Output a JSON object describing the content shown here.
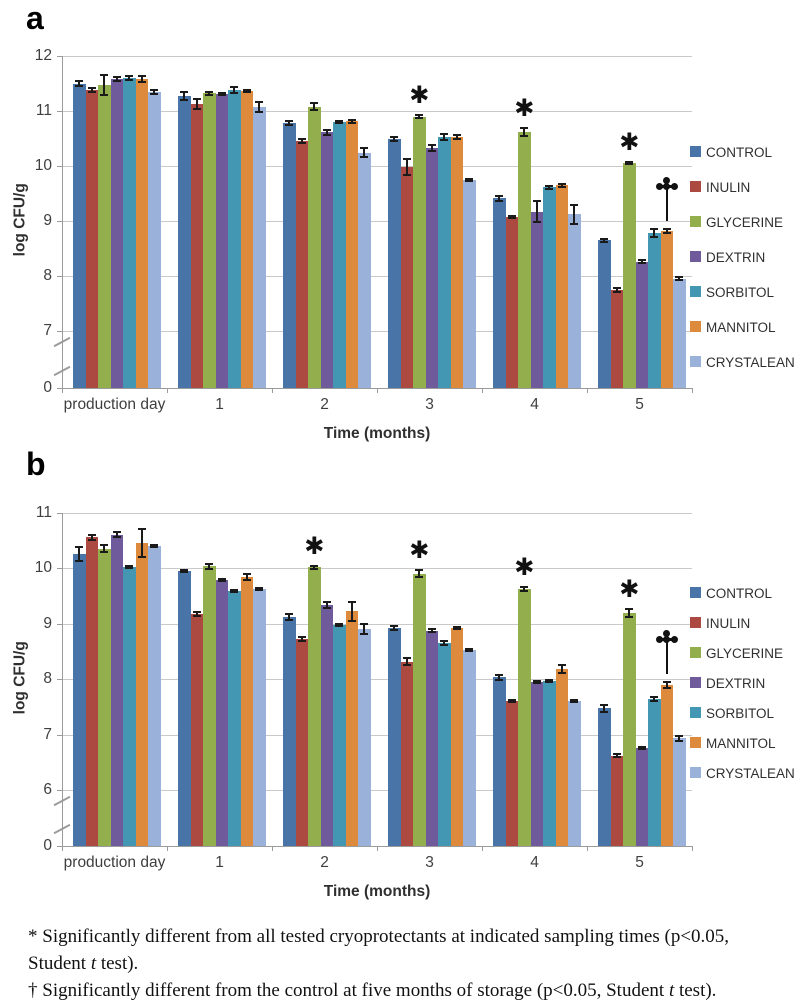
{
  "figure": {
    "footnotes": [
      {
        "line_segments": [
          {
            "t": "* Significantly different from all tested cryoprotectants at indicated sampling times (p<0.05,"
          }
        ]
      },
      {
        "line_segments": [
          {
            "t": "Student "
          },
          {
            "t": "t",
            "i": true
          },
          {
            "t": " test)."
          }
        ]
      },
      {
        "line_segments": [
          {
            "t": "† Significantly different from the control at five months of storage (p<0.05, Student "
          },
          {
            "t": "t",
            "i": true
          },
          {
            "t": " test)."
          }
        ]
      }
    ]
  },
  "chart_data": [
    {
      "id": "a",
      "type": "bar",
      "panel_label": "a",
      "xlabel": "Time (months)",
      "ylabel": "log CFU/g",
      "categories": [
        "production day",
        "1",
        "2",
        "3",
        "4",
        "5"
      ],
      "yticks": [
        12,
        11,
        10,
        9,
        8,
        7,
        0
      ],
      "ylim": [
        0,
        12
      ],
      "axis_break_between": [
        0,
        7
      ],
      "grid": true,
      "legend_position": "right",
      "series": [
        {
          "name": "CONTROL",
          "color": "#4874A8",
          "values": [
            11.5,
            11.27,
            10.78,
            10.49,
            9.41,
            8.65
          ],
          "errors": [
            0.05,
            0.07,
            0.03,
            0.04,
            0.05,
            0.03
          ]
        },
        {
          "name": "INULIN",
          "color": "#AC4A42",
          "values": [
            11.38,
            11.12,
            10.45,
            9.98,
            9.07,
            7.75
          ],
          "errors": [
            0.03,
            0.09,
            0.04,
            0.15,
            0.02,
            0.04
          ]
        },
        {
          "name": "GLYCERINE",
          "color": "#93AE4C",
          "values": [
            11.48,
            11.32,
            11.08,
            10.9,
            10.62,
            10.06
          ],
          "errors": [
            0.18,
            0.03,
            0.07,
            0.03,
            0.08,
            0.02
          ]
        },
        {
          "name": "DEXTRIN",
          "color": "#6F5A9B",
          "values": [
            11.58,
            11.31,
            10.61,
            10.33,
            9.17,
            8.26
          ],
          "errors": [
            0.04,
            0.02,
            0.05,
            0.05,
            0.19,
            0.03
          ]
        },
        {
          "name": "SORBITOL",
          "color": "#4397B2",
          "values": [
            11.6,
            11.38,
            10.8,
            10.53,
            9.61,
            8.78
          ],
          "errors": [
            0.03,
            0.06,
            0.02,
            0.06,
            0.02,
            0.07
          ]
        },
        {
          "name": "MANNITOL",
          "color": "#DE8A3D",
          "values": [
            11.58,
            11.36,
            10.81,
            10.53,
            9.65,
            8.82
          ],
          "errors": [
            0.05,
            0.02,
            0.02,
            0.03,
            0.03,
            0.04
          ]
        },
        {
          "name": "CRYSTALEAN",
          "color": "#9AB1D9",
          "values": [
            11.35,
            11.07,
            10.24,
            9.75,
            9.12,
            7.95
          ],
          "errors": [
            0.04,
            0.09,
            0.08,
            0.02,
            0.17,
            0.03
          ]
        }
      ],
      "annotations": [
        {
          "symbol": "*",
          "category": "3",
          "series": "GLYCERINE"
        },
        {
          "symbol": "*",
          "category": "4",
          "series": "GLYCERINE"
        },
        {
          "symbol": "*",
          "category": "5",
          "series": "GLYCERINE"
        },
        {
          "symbol": "†",
          "category": "5",
          "series": "MANNITOL"
        }
      ]
    },
    {
      "id": "b",
      "type": "bar",
      "panel_label": "b",
      "xlabel": "Time (months)",
      "ylabel": "log CFU/g",
      "categories": [
        "production day",
        "1",
        "2",
        "3",
        "4",
        "5"
      ],
      "yticks": [
        11,
        10,
        9,
        8,
        7,
        6,
        0
      ],
      "ylim": [
        0,
        11
      ],
      "axis_break_between": [
        0,
        6
      ],
      "grid": true,
      "legend_position": "right",
      "series": [
        {
          "name": "CONTROL",
          "color": "#4874A8",
          "values": [
            10.25,
            9.95,
            9.12,
            8.92,
            8.03,
            7.47
          ],
          "errors": [
            0.13,
            0.02,
            0.06,
            0.03,
            0.05,
            0.06
          ]
        },
        {
          "name": "INULIN",
          "color": "#AC4A42",
          "values": [
            10.55,
            9.17,
            8.72,
            8.31,
            7.6,
            6.62
          ],
          "errors": [
            0.04,
            0.03,
            0.03,
            0.06,
            0.02,
            0.02
          ]
        },
        {
          "name": "GLYCERINE",
          "color": "#93AE4C",
          "values": [
            10.35,
            10.03,
            10.01,
            9.9,
            9.62,
            9.19
          ],
          "errors": [
            0.07,
            0.04,
            0.03,
            0.07,
            0.03,
            0.07
          ]
        },
        {
          "name": "DEXTRIN",
          "color": "#6F5A9B",
          "values": [
            10.6,
            9.78,
            9.33,
            8.87,
            7.95,
            6.76
          ],
          "errors": [
            0.04,
            0.02,
            0.05,
            0.03,
            0.02,
            0.02
          ]
        },
        {
          "name": "SORBITOL",
          "color": "#4397B2",
          "values": [
            10.02,
            9.59,
            8.98,
            8.65,
            7.96,
            7.64
          ],
          "errors": [
            0.02,
            0.02,
            0.02,
            0.03,
            0.02,
            0.03
          ]
        },
        {
          "name": "MANNITOL",
          "color": "#DE8A3D",
          "values": [
            10.45,
            9.84,
            9.22,
            8.92,
            8.18,
            7.89
          ],
          "errors": [
            0.25,
            0.05,
            0.17,
            0.02,
            0.08,
            0.05
          ]
        },
        {
          "name": "CRYSTALEAN",
          "color": "#9AB1D9",
          "values": [
            10.4,
            9.62,
            8.9,
            8.52,
            7.6,
            6.93
          ],
          "errors": [
            0.02,
            0.02,
            0.09,
            0.02,
            0.02,
            0.05
          ]
        }
      ],
      "annotations": [
        {
          "symbol": "*",
          "category": "2",
          "series": "GLYCERINE"
        },
        {
          "symbol": "*",
          "category": "3",
          "series": "GLYCERINE"
        },
        {
          "symbol": "*",
          "category": "4",
          "series": "GLYCERINE"
        },
        {
          "symbol": "*",
          "category": "5",
          "series": "GLYCERINE"
        },
        {
          "symbol": "†",
          "category": "5",
          "series": "MANNITOL"
        }
      ]
    }
  ]
}
